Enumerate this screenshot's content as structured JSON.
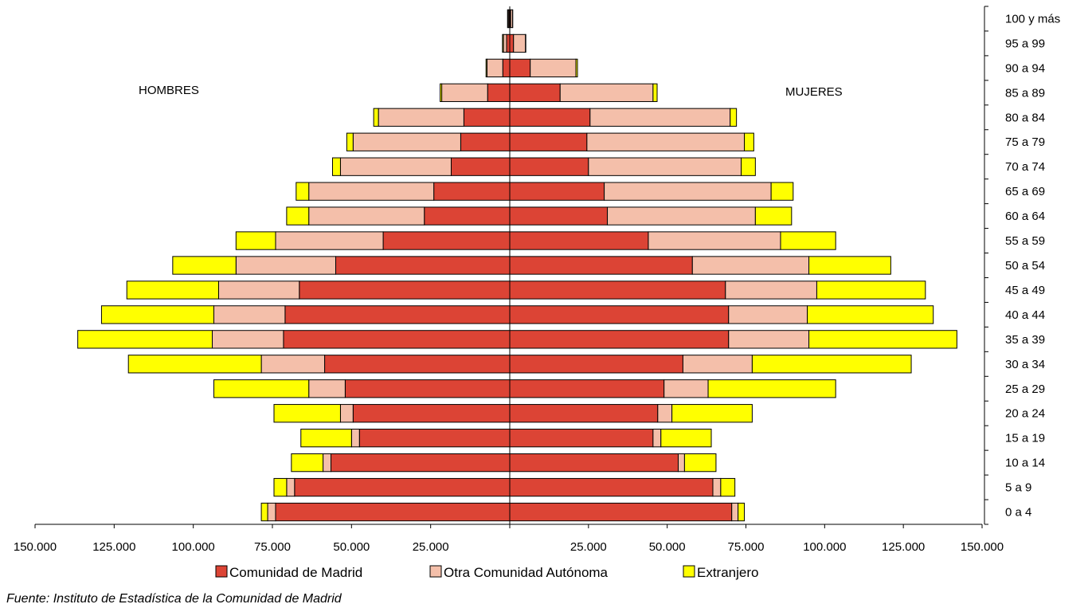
{
  "chart_data": {
    "type": "bar",
    "orientation": "horizontal-population-pyramid",
    "title": "",
    "side_labels": {
      "left": "HOMBRES",
      "right": "MUJERES"
    },
    "categories": [
      "0 a 4",
      "5 a 9",
      "10 a 14",
      "15 a 19",
      "20 a 24",
      "25 a 29",
      "30 a 34",
      "35 a 39",
      "40 a 44",
      "45 a 49",
      "50 a 54",
      "55 a 59",
      "60 a 64",
      "65 a 69",
      "70 a 74",
      "75 a 79",
      "80 a 84",
      "85 a 89",
      "90 a 94",
      "95 a 99",
      "100 y más"
    ],
    "x_ticks": [
      "150.000",
      "125.000",
      "100.000",
      "75.000",
      "50.000",
      "25.000",
      "",
      "25.000",
      "50.000",
      "75.000",
      "100.000",
      "125.000",
      "150.000"
    ],
    "xlim": [
      -150000,
      150000
    ],
    "legend": {
      "position": "bottom",
      "entries": [
        "Comunidad de Madrid",
        "Otra Comunidad Autónoma",
        "Extranjero"
      ]
    },
    "series": [
      {
        "name": "Comunidad de Madrid",
        "color": "#dc4435",
        "men": [
          74000,
          68000,
          56500,
          47500,
          49500,
          52000,
          58500,
          71500,
          71000,
          66500,
          55000,
          40000,
          27000,
          24000,
          18500,
          15500,
          14500,
          7000,
          2200,
          1000,
          300
        ],
        "women": [
          70500,
          64500,
          53500,
          45500,
          47000,
          49000,
          55000,
          69500,
          69500,
          68500,
          58000,
          44000,
          31000,
          30000,
          25000,
          24500,
          25500,
          16000,
          6500,
          1200,
          300
        ]
      },
      {
        "name": "Otra Comunidad Autónoma",
        "color": "#f4bfaa",
        "men": [
          2500,
          2500,
          2500,
          2500,
          4000,
          11500,
          20000,
          22500,
          22500,
          25500,
          31500,
          34000,
          36500,
          39500,
          35000,
          34000,
          27000,
          14500,
          5000,
          1000,
          300
        ],
        "women": [
          2000,
          2500,
          2000,
          2500,
          4500,
          14000,
          22000,
          25500,
          25000,
          29000,
          37000,
          42000,
          47000,
          53000,
          48500,
          50000,
          44500,
          29500,
          14500,
          3800,
          600
        ]
      },
      {
        "name": "Extranjero",
        "color": "#ffff00",
        "men": [
          2000,
          4000,
          10000,
          16000,
          21000,
          30000,
          42000,
          42500,
          35500,
          29000,
          20000,
          12500,
          7000,
          4000,
          2500,
          2000,
          1500,
          500,
          300,
          300,
          100
        ],
        "women": [
          2000,
          4500,
          10000,
          16000,
          25500,
          40500,
          50500,
          47000,
          40000,
          34500,
          26000,
          17500,
          11500,
          7000,
          4500,
          3000,
          2000,
          1300,
          500,
          100,
          50
        ]
      }
    ]
  },
  "source_note": "Fuente: Instituto de Estadística de la Comunidad de Madrid"
}
